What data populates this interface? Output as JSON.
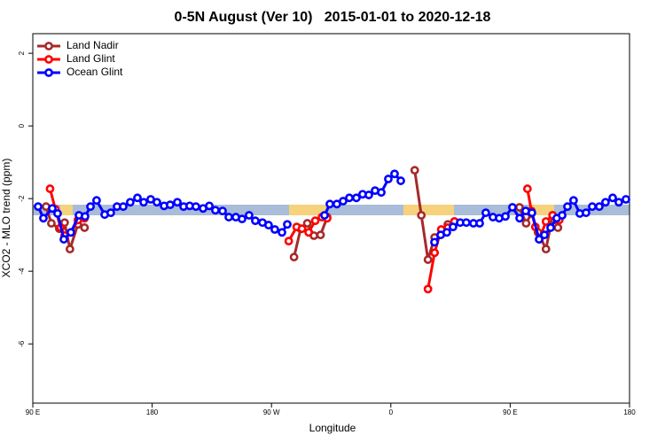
{
  "chart_data": {
    "type": "line",
    "title": "0-5N August (Ver 10)   2015-01-01 to 2020-12-18",
    "x_label": "Longitude",
    "y_label": "XCO2 - MLO trend (ppm)",
    "xlim": [
      90,
      540
    ],
    "ylim": [
      -7.63,
      2.54
    ],
    "xticks": [
      {
        "value": 90,
        "label": "90 E"
      },
      180,
      {
        "value": 270,
        "label": "90 W"
      },
      {
        "value": 360,
        "label": "0"
      },
      {
        "value": 450,
        "label": "90 E"
      },
      {
        "value": 540,
        "label": "180"
      }
    ],
    "yticks": [
      2,
      0,
      -2,
      -4,
      -6
    ],
    "legend": "top-left",
    "series": [
      {
        "name": "Land Nadir",
        "color": "#a52a2a",
        "x": [
          100,
          104,
          110,
          114,
          118,
          124,
          129,
          null,
          287,
          292,
          297,
          302,
          307,
          312,
          null,
          378,
          383,
          388,
          393,
          398,
          403,
          408,
          null,
          457,
          462,
          466,
          471,
          477,
          482,
          486
        ],
        "values": [
          -2.22,
          -2.68,
          -2.83,
          -2.66,
          -3.39,
          -2.71,
          -2.8,
          null,
          -3.61,
          -2.83,
          -2.68,
          -3.02,
          -3.0,
          -2.51,
          null,
          -1.22,
          -2.46,
          -3.68,
          -3.07,
          -2.98,
          -2.71,
          -2.63,
          null,
          -2.24,
          -2.68,
          -2.41,
          -2.93,
          -3.39,
          -2.46,
          -2.8
        ]
      },
      {
        "name": "Land Glint",
        "color": "#ff0000",
        "x": [
          103,
          107,
          111,
          114,
          119,
          124,
          129,
          null,
          283,
          289,
          293,
          298,
          303,
          308,
          312,
          null,
          388,
          393,
          398,
          403,
          408,
          null,
          463,
          466,
          469,
          472,
          477,
          482,
          487
        ],
        "values": [
          -1.73,
          -2.29,
          -2.8,
          -3.02,
          -2.93,
          -2.59,
          -2.54,
          null,
          -3.17,
          -2.78,
          -2.83,
          -2.93,
          -2.61,
          -2.51,
          -2.54,
          null,
          -4.49,
          -3.49,
          -2.85,
          -2.8,
          -2.63,
          null,
          -1.73,
          -2.34,
          -2.78,
          -3.12,
          -2.63,
          -2.46,
          -2.59
        ]
      },
      {
        "name": "Ocean Glint",
        "color": "#0000ff",
        "x": [
          94,
          98,
          104.7,
          108.7,
          113.4,
          118.7,
          124.8,
          129.4,
          133.5,
          138.1,
          144.2,
          148.8,
          153.5,
          158.2,
          163.5,
          168.9,
          173.6,
          178.9,
          183.6,
          189,
          193.6,
          199,
          203.7,
          208.3,
          213,
          218.4,
          223.1,
          227.7,
          233.1,
          237.8,
          243.1,
          247.8,
          253.1,
          257.8,
          263.2,
          267.8,
          272.5,
          277.9,
          281.9,
          null,
          310,
          314,
          319.3,
          324,
          328.7,
          334,
          338.7,
          343.4,
          348.1,
          352.8,
          358.1,
          362.8,
          367.5,
          null,
          392.9,
          397.6,
          402.2,
          406.9,
          412.3,
          416.9,
          422.3,
          427,
          431.6,
          437,
          441.7,
          446.4,
          451.7,
          457.1,
          461.7,
          466.4,
          471.8,
          475.8,
          480.5,
          485.1,
          489.2,
          493.2,
          497.8,
          502.5,
          507.2,
          511.9,
          517.2,
          521.9,
          527.3,
          531.9,
          537.3
        ],
        "values": [
          -2.22,
          -2.54,
          -2.27,
          -2.41,
          -3.12,
          -2.93,
          -2.46,
          -2.49,
          -2.22,
          -2.05,
          -2.44,
          -2.39,
          -2.22,
          -2.22,
          -2.1,
          -1.98,
          -2.1,
          -2.02,
          -2.1,
          -2.2,
          -2.17,
          -2.1,
          -2.22,
          -2.2,
          -2.22,
          -2.27,
          -2.2,
          -2.32,
          -2.34,
          -2.51,
          -2.51,
          -2.56,
          -2.46,
          -2.61,
          -2.66,
          -2.73,
          -2.85,
          -2.93,
          -2.71,
          null,
          -2.46,
          -2.15,
          -2.15,
          -2.07,
          -1.98,
          -1.98,
          -1.88,
          -1.9,
          -1.78,
          -1.83,
          -1.46,
          -1.32,
          -1.51,
          null,
          -3.2,
          -3.0,
          -2.93,
          -2.78,
          -2.66,
          -2.66,
          -2.68,
          -2.68,
          -2.39,
          -2.51,
          -2.54,
          -2.49,
          -2.24,
          -2.54,
          -2.34,
          -2.39,
          -3.12,
          -3.0,
          -2.8,
          -2.54,
          -2.46,
          -2.22,
          -2.05,
          -2.41,
          -2.39,
          -2.22,
          -2.22,
          -2.1,
          -1.98,
          -2.1,
          -2.02
        ]
      }
    ]
  }
}
